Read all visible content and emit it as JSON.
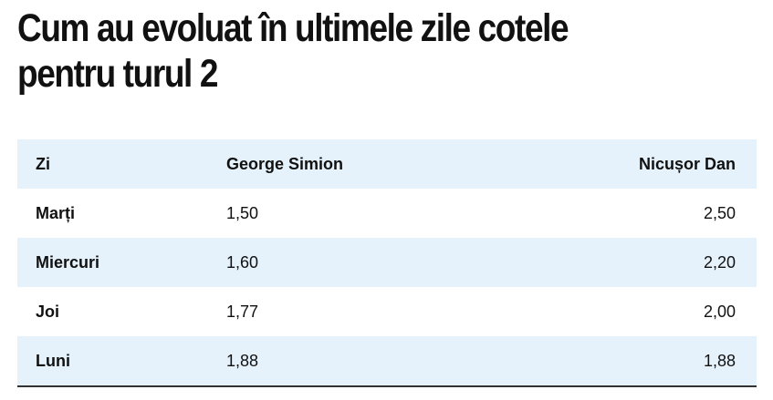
{
  "title": "Cum au evoluat în ultimele zile cotele pentru turul 2",
  "table": {
    "headers": [
      "Zi",
      "George Simion",
      "Nicușor Dan"
    ],
    "rows": [
      [
        "Marți",
        "1,50",
        "2,50"
      ],
      [
        "Miercuri",
        "1,60",
        "2,20"
      ],
      [
        "Joi",
        "1,77",
        "2,00"
      ],
      [
        "Luni",
        "1,88",
        "1,88"
      ]
    ]
  },
  "colors": {
    "shaded_row": "#e6f2fb",
    "text": "#111111",
    "bottom_rule": "#333333"
  }
}
